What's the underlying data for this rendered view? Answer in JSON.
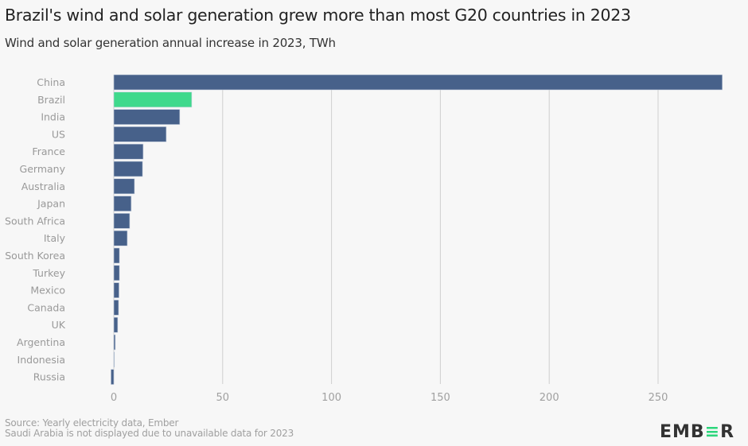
{
  "header": {
    "title": "Brazil's wind and solar generation grew more than most G20 countries in 2023",
    "subtitle": "Wind and solar generation annual increase in 2023, TWh"
  },
  "footer": {
    "source": "Source: Yearly electricity data, Ember",
    "note": "Saudi Arabia is not displayed due to unavailable data for 2023"
  },
  "logo": {
    "prefix": "EMB",
    "accent": "≡",
    "suffix": "R"
  },
  "colors": {
    "default_bar": "#47618a",
    "highlight_bar": "#3fd98c",
    "grid": "#cfcfcf",
    "tick_text": "#a0a0a0",
    "label_text": "#999999"
  },
  "chart_data": {
    "type": "bar",
    "orientation": "horizontal",
    "title": "Brazil's wind and solar generation grew more than most G20 countries in 2023",
    "subtitle": "Wind and solar generation annual increase in 2023, TWh",
    "xlabel": "",
    "ylabel": "",
    "xlim": [
      0,
      280
    ],
    "xticks": [
      0,
      50,
      100,
      150,
      200,
      250
    ],
    "grid": true,
    "highlight": "Brazil",
    "categories": [
      "China",
      "Brazil",
      "India",
      "US",
      "France",
      "Germany",
      "Australia",
      "Japan",
      "South Africa",
      "Italy",
      "South Korea",
      "Turkey",
      "Mexico",
      "Canada",
      "UK",
      "Argentina",
      "Indonesia",
      "Russia"
    ],
    "values": [
      279.5,
      35.8,
      30.3,
      24.1,
      13.5,
      13.2,
      9.5,
      8.0,
      7.3,
      6.2,
      2.6,
      2.6,
      2.4,
      2.2,
      1.8,
      0.7,
      0.2,
      -1.3
    ]
  }
}
